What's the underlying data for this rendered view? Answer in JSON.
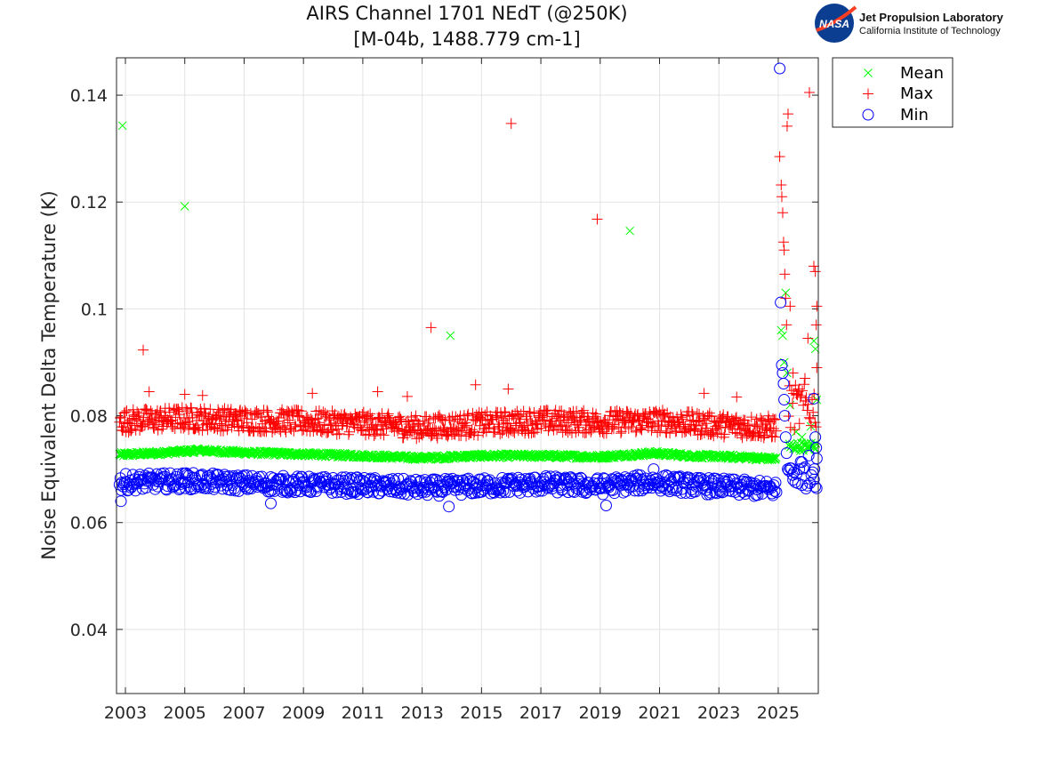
{
  "logo": {
    "nasa_text": "NASA",
    "line1": "Jet Propulsion Laboratory",
    "line2": "California Institute of Technology"
  },
  "chart_data": {
    "type": "scatter",
    "title": "AIRS Channel 1701 NEdT (@250K)",
    "subtitle": "[M-04b, 1488.779 cm-1]",
    "xlabel": "",
    "ylabel": "Noise Equivalent Delta Temperature (K)",
    "xlim": [
      2002.7,
      2026.35
    ],
    "ylim": [
      0.028,
      0.147
    ],
    "xticks": [
      2003,
      2005,
      2007,
      2009,
      2011,
      2013,
      2015,
      2017,
      2019,
      2021,
      2023,
      2025
    ],
    "xtick_labels": [
      "2003",
      "2005",
      "2007",
      "2009",
      "2011",
      "2013",
      "2015",
      "2017",
      "2019",
      "2021",
      "2023",
      "2025"
    ],
    "yticks": [
      0.04,
      0.06,
      0.08,
      0.1,
      0.12,
      0.14
    ],
    "ytick_labels": [
      "0.04",
      "0.06",
      "0.08",
      "0.1",
      "0.12",
      "0.14"
    ],
    "grid": true,
    "legend_position": "outside-top-right",
    "series": [
      {
        "name": "Mean",
        "marker": "x",
        "color": "#00ff00",
        "baseline": [
          [
            2002.8,
            0.0727
          ],
          [
            2004.0,
            0.073
          ],
          [
            2005.5,
            0.0735
          ],
          [
            2007.0,
            0.0731
          ],
          [
            2009.0,
            0.0728
          ],
          [
            2011.0,
            0.0725
          ],
          [
            2013.0,
            0.0721
          ],
          [
            2015.0,
            0.0725
          ],
          [
            2017.0,
            0.0725
          ],
          [
            2019.0,
            0.0723
          ],
          [
            2020.8,
            0.073
          ],
          [
            2022.0,
            0.0725
          ],
          [
            2024.0,
            0.0722
          ],
          [
            2024.95,
            0.0719
          ]
        ],
        "spread": 0.0004,
        "outliers": [
          [
            2002.9,
            0.1343
          ],
          [
            2005.0,
            0.1192
          ],
          [
            2013.95,
            0.095
          ],
          [
            2020.0,
            0.1146
          ],
          [
            2025.1,
            0.096
          ],
          [
            2025.15,
            0.095
          ],
          [
            2025.2,
            0.09
          ],
          [
            2025.25,
            0.103
          ],
          [
            2025.3,
            0.088
          ],
          [
            2025.4,
            0.082
          ],
          [
            2025.6,
            0.077
          ],
          [
            2025.8,
            0.076
          ],
          [
            2026.1,
            0.078
          ],
          [
            2026.2,
            0.094
          ],
          [
            2026.25,
            0.0925
          ],
          [
            2026.3,
            0.083
          ]
        ]
      },
      {
        "name": "Max",
        "marker": "+",
        "color": "#ff0000",
        "baseline": [
          [
            2002.8,
            0.079
          ],
          [
            2005.0,
            0.0795
          ],
          [
            2007.0,
            0.0792
          ],
          [
            2009.0,
            0.0789
          ],
          [
            2011.0,
            0.0785
          ],
          [
            2013.0,
            0.0778
          ],
          [
            2015.0,
            0.0785
          ],
          [
            2017.0,
            0.079
          ],
          [
            2019.0,
            0.0788
          ],
          [
            2021.0,
            0.079
          ],
          [
            2023.0,
            0.0782
          ],
          [
            2024.95,
            0.0778
          ]
        ],
        "spread": 0.0022,
        "outliers": [
          [
            2003.6,
            0.0923
          ],
          [
            2003.8,
            0.0845
          ],
          [
            2005.0,
            0.084
          ],
          [
            2005.6,
            0.0838
          ],
          [
            2009.3,
            0.0842
          ],
          [
            2011.5,
            0.0845
          ],
          [
            2012.5,
            0.0836
          ],
          [
            2013.3,
            0.0965
          ],
          [
            2014.8,
            0.0858
          ],
          [
            2015.9,
            0.085
          ],
          [
            2016.0,
            0.1347
          ],
          [
            2018.9,
            0.1168
          ],
          [
            2022.5,
            0.0842
          ],
          [
            2023.6,
            0.0835
          ],
          [
            2025.05,
            0.1285
          ],
          [
            2025.1,
            0.1232
          ],
          [
            2025.12,
            0.121
          ],
          [
            2025.15,
            0.118
          ],
          [
            2025.18,
            0.1125
          ],
          [
            2025.2,
            0.111
          ],
          [
            2025.22,
            0.1065
          ],
          [
            2025.25,
            0.102
          ],
          [
            2025.28,
            0.097
          ],
          [
            2025.3,
            0.1342
          ],
          [
            2025.33,
            0.1365
          ],
          [
            2025.4,
            0.1005
          ],
          [
            2025.5,
            0.088
          ],
          [
            2025.7,
            0.085
          ],
          [
            2025.9,
            0.087
          ],
          [
            2026.0,
            0.0945
          ],
          [
            2026.05,
            0.1405
          ],
          [
            2026.2,
            0.108
          ],
          [
            2026.25,
            0.107
          ],
          [
            2026.3,
            0.1005
          ],
          [
            2026.28,
            0.097
          ],
          [
            2026.3,
            0.089
          ]
        ]
      },
      {
        "name": "Min",
        "marker": "o",
        "color": "#0000ff",
        "baseline": [
          [
            2002.8,
            0.0675
          ],
          [
            2005.0,
            0.0678
          ],
          [
            2007.0,
            0.0674
          ],
          [
            2009.0,
            0.0671
          ],
          [
            2011.0,
            0.0669
          ],
          [
            2013.0,
            0.0665
          ],
          [
            2015.0,
            0.0668
          ],
          [
            2017.0,
            0.0672
          ],
          [
            2019.0,
            0.0668
          ],
          [
            2020.8,
            0.0676
          ],
          [
            2022.0,
            0.067
          ],
          [
            2024.95,
            0.0662
          ]
        ],
        "spread": 0.0016,
        "outliers": [
          [
            2002.85,
            0.064
          ],
          [
            2005.0,
            0.0692
          ],
          [
            2007.9,
            0.0636
          ],
          [
            2013.9,
            0.063
          ],
          [
            2019.2,
            0.0632
          ],
          [
            2020.8,
            0.07
          ],
          [
            2025.05,
            0.145
          ],
          [
            2025.08,
            0.1012
          ],
          [
            2025.12,
            0.0895
          ],
          [
            2025.15,
            0.088
          ],
          [
            2025.18,
            0.086
          ],
          [
            2025.2,
            0.083
          ],
          [
            2025.22,
            0.08
          ],
          [
            2025.25,
            0.076
          ],
          [
            2025.28,
            0.073
          ],
          [
            2025.32,
            0.07
          ],
          [
            2025.5,
            0.068
          ],
          [
            2025.8,
            0.067
          ],
          [
            2026.2,
            0.0832
          ],
          [
            2026.25,
            0.076
          ],
          [
            2026.28,
            0.074
          ],
          [
            2026.3,
            0.072
          ],
          [
            2026.22,
            0.07
          ]
        ]
      }
    ]
  }
}
